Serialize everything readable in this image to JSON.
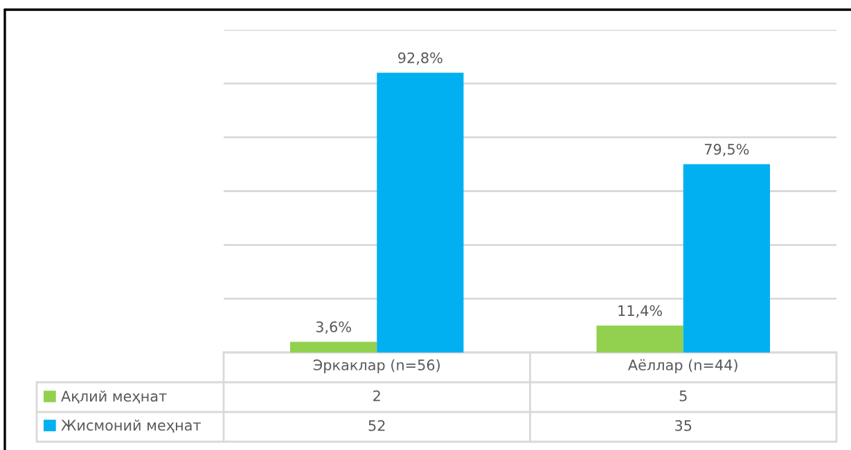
{
  "chart_data": {
    "type": "bar",
    "categories": [
      "Эркаклар (n=56)",
      "Аёллар (n=44)"
    ],
    "series": [
      {
        "name": "Ақлий меҳнат",
        "color": "#92d050",
        "values": [
          2,
          5
        ]
      },
      {
        "name": "Жисмоний меҳнат",
        "color": "#00b0f0",
        "values": [
          52,
          35
        ]
      }
    ],
    "annotations": [
      {
        "text": "3,6%",
        "x": "Эркаклар (n=56)",
        "y": 2
      },
      {
        "text": "92,8%",
        "x": "Эркаклар (n=56)",
        "y": 52
      },
      {
        "text": "11,4%",
        "x": "Аёллар (n=44)",
        "y": 5
      },
      {
        "text": "79,5%",
        "x": "Аёллар (n=44)",
        "y": 35
      }
    ],
    "grid": "y",
    "tick_labels": "x",
    "legend": "bottom",
    "data_labels": true
  }
}
